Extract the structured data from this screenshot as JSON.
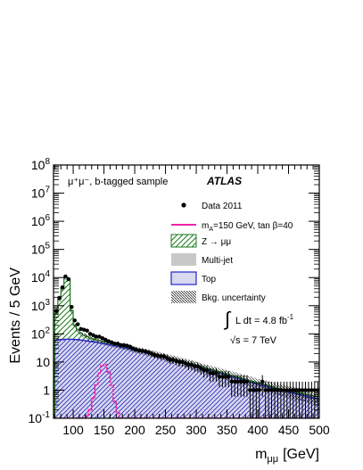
{
  "chart_data": {
    "type": "histogram",
    "xlabel": "m",
    "xlabel_sub": "μμ",
    "xlabel_unit": "[GeV]",
    "ylabel": "Events / 5 GeV",
    "xlim": [
      68,
      500
    ],
    "ylim_log10": [
      -1,
      8
    ],
    "yscale": "log",
    "x_ticks": [
      "100",
      "150",
      "200",
      "250",
      "300",
      "350",
      "400",
      "450",
      "500"
    ],
    "y_ticks": [
      {
        "base": "10",
        "exp": "8"
      },
      {
        "base": "10",
        "exp": "7"
      },
      {
        "base": "10",
        "exp": "6"
      },
      {
        "base": "10",
        "exp": "5"
      },
      {
        "base": "10",
        "exp": "4"
      },
      {
        "base": "10",
        "exp": "3"
      },
      {
        "base": "10",
        "exp": "2"
      },
      {
        "base": "10",
        "exp": ""
      },
      {
        "base": "1",
        "exp": ""
      },
      {
        "base": "10",
        "exp": "-1"
      }
    ],
    "annotations": {
      "selection": "μ⁺μ⁻, b-tagged sample",
      "experiment": "ATLAS",
      "lumi_integral": "∫",
      "lumi": "L dt = 4.8 fb",
      "lumi_exp": "-1",
      "energy": "√s = 7 TeV"
    },
    "legend": {
      "position": "top-right",
      "entries": [
        {
          "label": "Data 2011",
          "style": "marker",
          "color": "#000000"
        },
        {
          "label": "m",
          "sub": "A",
          "rest": "=150 GeV, tan β=40",
          "style": "line",
          "color": "#ee22aa"
        },
        {
          "label": "Z → μμ",
          "style": "hatch-green",
          "color": "#1a7a1a"
        },
        {
          "label": "Multi-jet",
          "style": "fill",
          "color": "#c8c8c8"
        },
        {
          "label": "Top",
          "style": "hatch-blue",
          "color": "#2222cc"
        },
        {
          "label": "Bkg. uncertainty",
          "style": "hatch-black",
          "color": "#333333"
        }
      ]
    },
    "bin_width": 5,
    "bin_start": 70,
    "series": [
      {
        "name": "Data 2011",
        "type": "points",
        "color": "#000000",
        "x": [
          72.5,
          77.5,
          82.5,
          87.5,
          92.5,
          97.5,
          102.5,
          107.5,
          112.5,
          117.5,
          122.5,
          127.5,
          132.5,
          137.5,
          142.5,
          147.5,
          152.5,
          157.5,
          162.5,
          167.5,
          172.5,
          177.5,
          182.5,
          187.5,
          192.5,
          197.5,
          202.5,
          207.5,
          212.5,
          217.5,
          222.5,
          227.5,
          232.5,
          237.5,
          242.5,
          247.5,
          252.5,
          257.5,
          262.5,
          267.5,
          272.5,
          277.5,
          282.5,
          287.5,
          292.5,
          297.5,
          302.5,
          307.5,
          312.5,
          317.5,
          322.5,
          327.5,
          332.5,
          337.5,
          342.5,
          347.5,
          352.5,
          357.5,
          362.5,
          367.5,
          372.5,
          377.5,
          382.5,
          387.5,
          392.5,
          397.5,
          402.5,
          407.5,
          412.5,
          417.5,
          422.5,
          427.5,
          432.5,
          437.5,
          442.5,
          447.5,
          452.5,
          457.5,
          462.5,
          467.5,
          472.5,
          477.5,
          482.5,
          487.5,
          492.5,
          497.5
        ],
        "y": [
          650,
          1900,
          4500,
          11000,
          8800,
          900,
          300,
          220,
          150,
          140,
          130,
          100,
          90,
          80,
          80,
          70,
          62,
          55,
          50,
          45,
          45,
          40,
          40,
          38,
          35,
          30,
          28,
          26,
          25,
          24,
          22,
          20,
          18,
          17,
          16,
          16,
          14,
          12,
          12,
          11,
          10,
          10,
          9,
          8,
          8,
          7,
          7,
          6,
          5,
          5,
          4,
          4,
          4,
          3,
          3,
          3,
          3,
          2,
          2,
          2,
          2,
          2,
          2,
          1,
          1,
          1,
          1,
          2,
          1,
          1,
          1,
          1,
          1,
          1,
          1,
          1,
          1,
          1,
          1,
          1,
          1,
          1,
          1,
          1,
          1,
          1
        ]
      },
      {
        "name": "Z → μμ",
        "type": "stack",
        "color": "#1a7a1a",
        "y": [
          480,
          1600,
          4200,
          10000,
          8300,
          600,
          140,
          75,
          45,
          32,
          24,
          18,
          14,
          11,
          9,
          8,
          7,
          6,
          5,
          4.5,
          4,
          3.6,
          3.2,
          2.8,
          2.5,
          2.2,
          2.0,
          1.8,
          1.6,
          1.4,
          1.3,
          1.2,
          1.1,
          1.0,
          0.9,
          0.85,
          0.8,
          0.75,
          0.7,
          0.65,
          0.6,
          0.55,
          0.5,
          0.48,
          0.45,
          0.42,
          0.4,
          0.38,
          0.35,
          0.33,
          0.3,
          0.29,
          0.28,
          0.27,
          0.26,
          0.25,
          0.24,
          0.23,
          0.22,
          0.21,
          0.2,
          0.19,
          0.18,
          0.17,
          0.16,
          0.15,
          0.15,
          0.14,
          0.14,
          0.13,
          0.13,
          0.12,
          0.12,
          0.11,
          0.11,
          0.1,
          0.1,
          0.1,
          0.1,
          0.1,
          0.1,
          0.1,
          0.1,
          0.1,
          0.1,
          0.1
        ]
      },
      {
        "name": "Top",
        "type": "stack",
        "color": "#2222cc",
        "y": [
          60,
          62,
          63,
          64,
          64,
          64,
          63,
          62,
          60,
          58,
          56,
          54,
          52,
          50,
          48,
          46,
          44,
          42,
          40,
          38,
          36,
          34,
          32,
          31,
          29,
          27,
          26,
          24,
          23,
          21.5,
          20,
          19,
          18,
          17,
          16,
          15,
          14,
          13,
          12.2,
          11.4,
          10.6,
          10,
          9.3,
          8.7,
          8.1,
          7.5,
          7,
          6.5,
          6,
          5.6,
          5.2,
          4.8,
          4.5,
          4.2,
          3.9,
          3.6,
          3.3,
          3.1,
          2.9,
          2.7,
          2.5,
          2.3,
          2.1,
          2.0,
          1.85,
          1.7,
          1.6,
          1.5,
          1.4,
          1.3,
          1.2,
          1.1,
          1.05,
          1.0,
          0.95,
          0.9,
          0.85,
          0.8,
          0.75,
          0.7,
          0.66,
          0.62,
          0.58,
          0.55,
          0.52,
          0.5
        ]
      },
      {
        "name": "m_A=150 GeV, tan β=40",
        "type": "line",
        "color": "#ee22aa",
        "y": [
          0.1,
          0.1,
          0.1,
          0.1,
          0.1,
          0.1,
          0.1,
          0.1,
          0.1,
          0.1,
          0.12,
          0.2,
          0.5,
          1.5,
          4,
          7.5,
          8,
          4.5,
          1.5,
          0.4,
          0.15,
          0.1,
          0.1,
          0.1,
          0.1,
          0.1,
          0.1,
          0.1,
          0.1,
          0.1,
          0.1,
          0.1,
          0.1,
          0.1,
          0.1,
          0.1,
          0.1,
          0.1,
          0.1,
          0.1,
          0.1,
          0.1,
          0.1,
          0.1,
          0.1,
          0.1,
          0.1,
          0.1,
          0.1,
          0.1,
          0.1,
          0.1,
          0.1,
          0.1,
          0.1,
          0.1,
          0.1,
          0.1,
          0.1,
          0.1,
          0.1,
          0.1,
          0.1,
          0.1,
          0.1,
          0.1,
          0.1,
          0.1,
          0.1,
          0.1,
          0.1,
          0.1,
          0.1,
          0.1,
          0.1,
          0.1,
          0.1,
          0.1,
          0.1,
          0.1,
          0.1,
          0.1,
          0.1,
          0.1,
          0.1,
          0.1
        ]
      }
    ]
  }
}
